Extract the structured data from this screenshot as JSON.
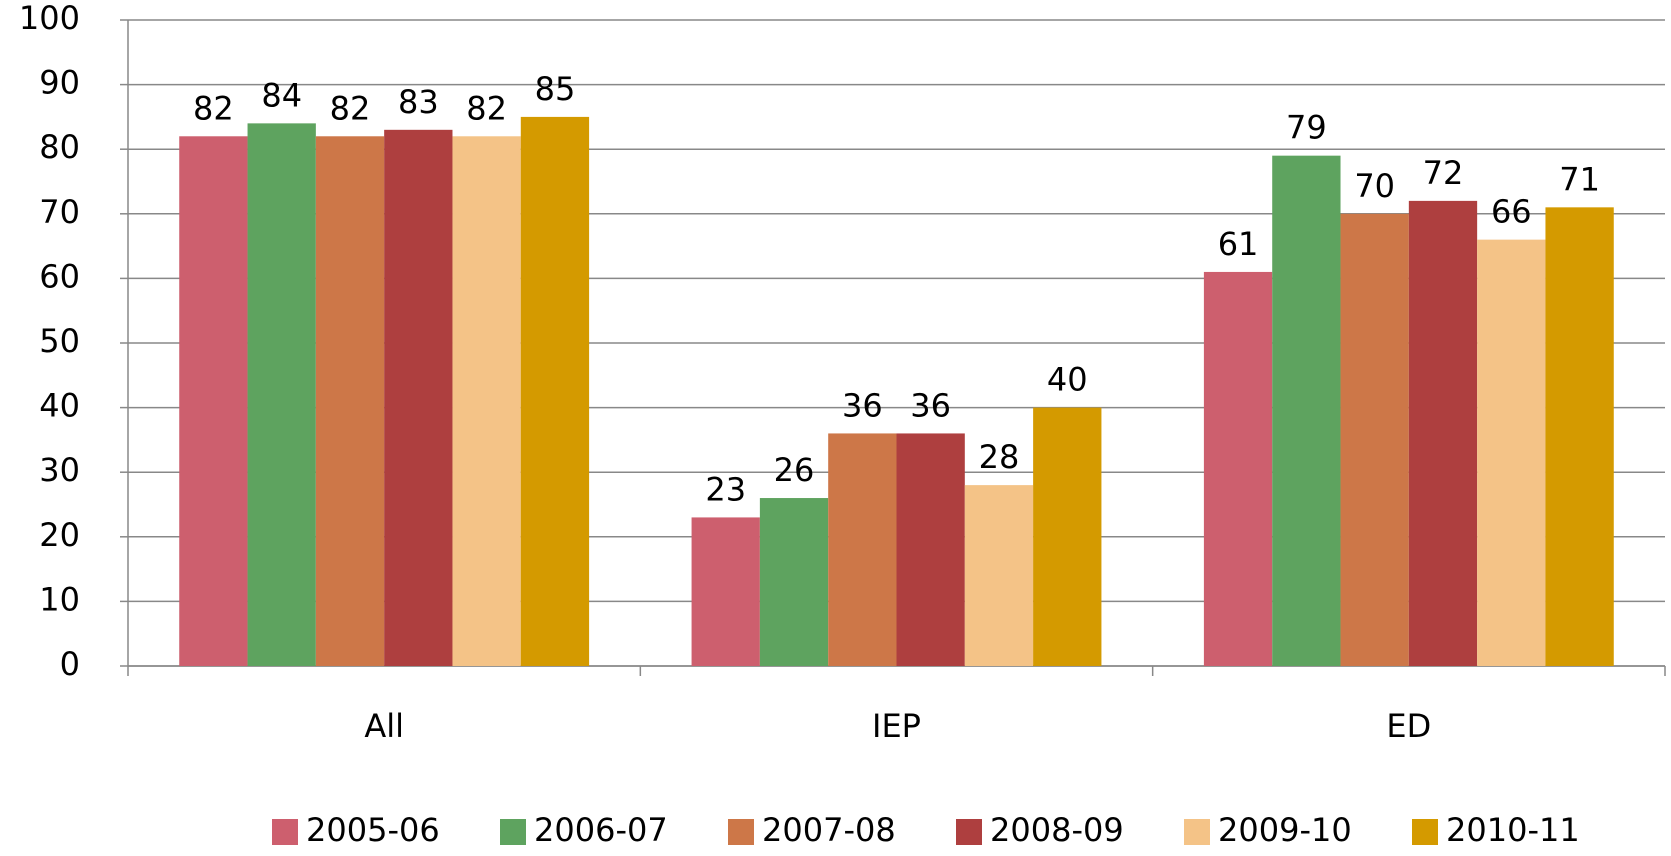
{
  "chart_data": {
    "type": "bar",
    "categories": [
      "All",
      "IEP",
      "ED"
    ],
    "series": [
      {
        "name": "2005-06",
        "color": "#cd5f6e",
        "values": [
          82,
          23,
          61
        ]
      },
      {
        "name": "2006-07",
        "color": "#5ea35f",
        "values": [
          84,
          26,
          79
        ]
      },
      {
        "name": "2007-08",
        "color": "#cd7748",
        "values": [
          82,
          36,
          70
        ]
      },
      {
        "name": "2008-09",
        "color": "#ae3f3f",
        "values": [
          83,
          36,
          72
        ]
      },
      {
        "name": "2009-10",
        "color": "#f4c387",
        "values": [
          82,
          28,
          66
        ]
      },
      {
        "name": "2010-11",
        "color": "#d49a00",
        "values": [
          85,
          40,
          71
        ]
      }
    ],
    "ylim": [
      0,
      100
    ],
    "yticks": [
      0,
      10,
      20,
      30,
      40,
      50,
      60,
      70,
      80,
      90,
      100
    ],
    "grid": true,
    "legend": "bottom"
  }
}
